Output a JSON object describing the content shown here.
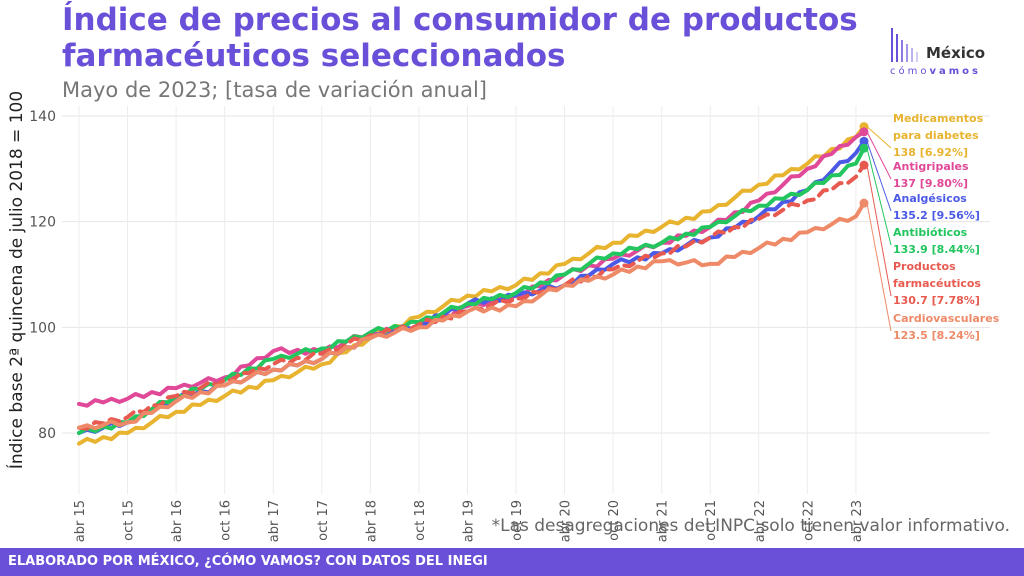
{
  "header": {
    "title": "Índice de precios al consumidor de productos farmacéuticos seleccionados",
    "subtitle": "Mayo de 2023; [tasa de variación anual]"
  },
  "logo": {
    "name": "México",
    "tagline_a": "cómo",
    "tagline_b": "vamos"
  },
  "note": "*Las desagregaciones del INPC solo tienen valor informativo.",
  "footer": "ELABORADO POR MÉXICO, ¿CÓMO VAMOS? CON DATOS DEL INEGI",
  "colors": {
    "accent": "#6a4fd8",
    "footer_bg": "#6a4fd8"
  },
  "chart_data": {
    "type": "line",
    "ylabel": "Índice base 2ª quincena de julio 2018 = 100",
    "ylim": [
      74,
      140
    ],
    "yticks": [
      80,
      100,
      120,
      140
    ],
    "x_start": "2015-04",
    "x_end": "2023-05",
    "xticks": [
      "abr 15",
      "oct 15",
      "abr 16",
      "oct 16",
      "abr 17",
      "oct 17",
      "abr 18",
      "oct 18",
      "abr 19",
      "oct 19",
      "abr 20",
      "oct 20",
      "abr 21",
      "oct 21",
      "abr 22",
      "oct 22",
      "abr 23"
    ],
    "grid": true,
    "anchor_months": [
      0,
      6,
      12,
      18,
      24,
      30,
      36,
      42,
      48,
      54,
      60,
      66,
      72,
      78,
      84,
      90,
      96,
      97
    ],
    "series": [
      {
        "key": "diabetes",
        "label_lines": [
          "Medicamentos",
          "para diabetes"
        ],
        "value_label": "138 [6.92%]",
        "color": "#e8b430",
        "dashed": false,
        "anchors": [
          78,
          80,
          84,
          87,
          90,
          93,
          98,
          102,
          106,
          108,
          112,
          116,
          119,
          122,
          127,
          131,
          136,
          138
        ]
      },
      {
        "key": "antigripales",
        "label_lines": [
          "Antigripales"
        ],
        "value_label": "137 [9.80%]",
        "color": "#e04898",
        "dashed": false,
        "anchors": [
          85.5,
          86.5,
          88.5,
          90.5,
          95.5,
          95.5,
          99,
          100,
          104,
          106,
          110,
          113,
          116,
          119,
          124,
          130,
          136,
          137
        ]
      },
      {
        "key": "analgesicos",
        "label_lines": [
          "Analgésicos"
        ],
        "value_label": "135.2 [9.56%]",
        "color": "#4a5ae6",
        "dashed": false,
        "anchors": [
          80,
          82,
          86.5,
          89,
          92,
          94,
          98,
          100.5,
          104.5,
          106,
          108,
          112,
          114,
          117,
          121,
          126,
          133,
          135.2
        ]
      },
      {
        "key": "antibioticos",
        "label_lines": [
          "Antibióticos"
        ],
        "value_label": "133.9 [8.44%]",
        "color": "#22c55e",
        "dashed": false,
        "anchors": [
          80,
          82,
          87,
          90,
          94,
          96,
          99,
          101,
          104.5,
          106.5,
          110,
          114,
          116,
          119,
          123,
          126,
          131,
          133.9
        ]
      },
      {
        "key": "farmaceuticos",
        "label_lines": [
          "Productos",
          "farmacéuticos"
        ],
        "value_label": "130.7 [7.78%]",
        "color": "#e85a50",
        "dashed": true,
        "anchors": [
          81,
          83,
          87,
          90,
          93,
          95,
          98.5,
          100.5,
          103,
          105.5,
          108,
          111,
          114,
          117,
          120.5,
          124,
          128.5,
          130.7
        ]
      },
      {
        "key": "cardiovasculares",
        "label_lines": [
          "Cardiovasculares"
        ],
        "value_label": "123.5 [8.24%]",
        "color": "#ee8a68",
        "dashed": false,
        "anchors": [
          81,
          82,
          86,
          89,
          92,
          94,
          98,
          100,
          103,
          104,
          108,
          110,
          112.5,
          112,
          115,
          118,
          121,
          123.5
        ]
      }
    ]
  }
}
